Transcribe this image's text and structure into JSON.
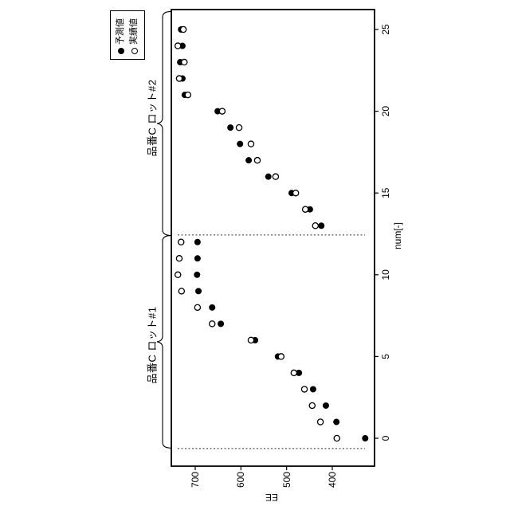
{
  "chart_data": {
    "type": "scatter",
    "title": "",
    "xlabel": "num[-]",
    "ylabel": "EE",
    "x_ticks": [
      0,
      5,
      10,
      15,
      20,
      25
    ],
    "y_ticks": [
      400,
      500,
      600,
      700
    ],
    "xlim": [
      -1.7,
      26.2
    ],
    "ylim": [
      300,
      750
    ],
    "grid": false,
    "legend_position": "top-right",
    "figure_rotation_deg": -90,
    "x": [
      0,
      1,
      2,
      3,
      4,
      5,
      6,
      7,
      8,
      9,
      10,
      11,
      12,
      13,
      14,
      15,
      16,
      17,
      18,
      19,
      20,
      21,
      22,
      23,
      24,
      25
    ],
    "series": [
      {
        "name": "予測値",
        "marker": "filled-circle",
        "color": "#000000",
        "values": [
          328,
          391,
          414,
          442,
          473,
          519,
          569,
          644,
          663,
          693,
          696,
          695,
          695,
          424,
          449,
          489,
          540,
          583,
          602,
          623,
          651,
          723,
          728,
          733,
          728,
          731
        ]
      },
      {
        "name": "実績値",
        "marker": "open-circle",
        "color": "#000000",
        "values": [
          390,
          426,
          444,
          461,
          484,
          512,
          578,
          663,
          695,
          730,
          738,
          735,
          731,
          437,
          459,
          480,
          524,
          564,
          578,
          604,
          641,
          716,
          735,
          724,
          738,
          726
        ]
      }
    ],
    "dashed_vlines_x": [
      -0.63,
      12.43
    ],
    "annotations": [
      {
        "label": "品番C ロット#1",
        "x_range": [
          -0.6,
          12.4
        ]
      },
      {
        "label": "品番C ロット#2",
        "x_range": [
          12.4,
          26.1
        ]
      }
    ]
  }
}
